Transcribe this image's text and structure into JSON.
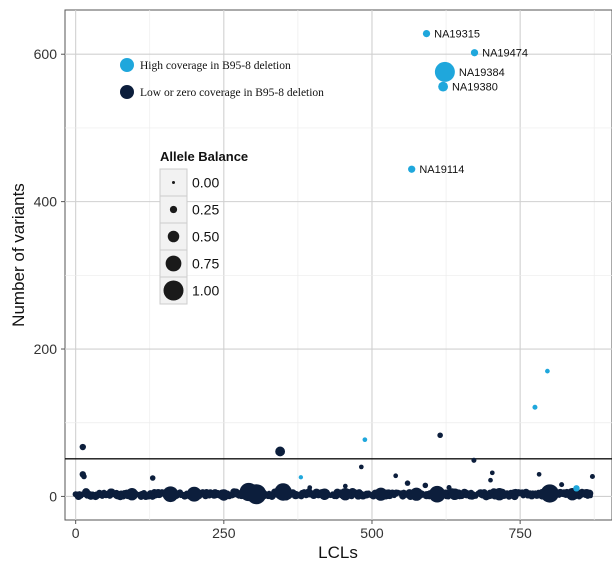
{
  "chart_data": {
    "type": "scatter",
    "title": "",
    "xlabel": "LCLs",
    "ylabel": "Number of variants",
    "xlim": [
      -18,
      905
    ],
    "ylim": [
      -32,
      660
    ],
    "x_ticks": [
      0,
      250,
      500,
      750
    ],
    "y_ticks": [
      0,
      200,
      400,
      600
    ],
    "x_tick_labels": [
      "0",
      "250",
      "500",
      "750"
    ],
    "y_tick_labels": [
      "0",
      "200",
      "400",
      "600"
    ],
    "grid": true,
    "threshold_line_y": 51,
    "colors": {
      "high": "#1FA7DC",
      "low": "#0C1E3C",
      "axis": "#555555",
      "grid": "#e0e0e0",
      "grid_major": "#d0d0d0",
      "legend_dot": "#1a1a1a"
    },
    "series": [
      {
        "name": "High coverage in B95-8 deletion",
        "color": "#1FA7DC",
        "points": [
          {
            "x": 592,
            "y": 628,
            "ab": 0.25,
            "label": "NA19315"
          },
          {
            "x": 673,
            "y": 602,
            "ab": 0.25,
            "label": "NA19474"
          },
          {
            "x": 623,
            "y": 576,
            "ab": 1.0,
            "label": "NA19384"
          },
          {
            "x": 620,
            "y": 556,
            "ab": 0.4,
            "label": "NA19380"
          },
          {
            "x": 567,
            "y": 444,
            "ab": 0.25,
            "label": "NA19114"
          },
          {
            "x": 796,
            "y": 170,
            "ab": 0.1,
            "label": ""
          },
          {
            "x": 775,
            "y": 121,
            "ab": 0.12,
            "label": ""
          },
          {
            "x": 488,
            "y": 77,
            "ab": 0.1,
            "label": ""
          },
          {
            "x": 380,
            "y": 26,
            "ab": 0.08,
            "label": ""
          },
          {
            "x": 845,
            "y": 11,
            "ab": 0.2,
            "label": ""
          }
        ]
      },
      {
        "name": "Low or zero coverage in B95-8 deletion",
        "color": "#0C1E3C",
        "points": [
          {
            "x": 12,
            "y": 67,
            "ab": 0.2
          },
          {
            "x": 345,
            "y": 61,
            "ab": 0.4
          },
          {
            "x": 615,
            "y": 83,
            "ab": 0.15
          },
          {
            "x": 672,
            "y": 49,
            "ab": 0.12
          },
          {
            "x": 482,
            "y": 40,
            "ab": 0.1
          },
          {
            "x": 12,
            "y": 30,
            "ab": 0.2
          },
          {
            "x": 14,
            "y": 27,
            "ab": 0.15
          },
          {
            "x": 130,
            "y": 25,
            "ab": 0.15
          },
          {
            "x": 540,
            "y": 28,
            "ab": 0.1
          },
          {
            "x": 703,
            "y": 32,
            "ab": 0.1
          },
          {
            "x": 782,
            "y": 30,
            "ab": 0.1
          },
          {
            "x": 872,
            "y": 27,
            "ab": 0.12
          },
          {
            "x": 590,
            "y": 15,
            "ab": 0.15
          },
          {
            "x": 560,
            "y": 18,
            "ab": 0.15
          },
          {
            "x": 700,
            "y": 22,
            "ab": 0.1
          },
          {
            "x": 820,
            "y": 16,
            "ab": 0.12
          },
          {
            "x": 455,
            "y": 14,
            "ab": 0.1
          },
          {
            "x": 395,
            "y": 12,
            "ab": 0.1
          },
          {
            "x": 630,
            "y": 12,
            "ab": 0.12
          },
          {
            "x": 95,
            "y": 3,
            "ab": 0.55
          },
          {
            "x": 160,
            "y": 3,
            "ab": 0.75
          },
          {
            "x": 200,
            "y": 3,
            "ab": 0.7
          },
          {
            "x": 250,
            "y": 2,
            "ab": 0.5
          },
          {
            "x": 292,
            "y": 6,
            "ab": 0.9
          },
          {
            "x": 305,
            "y": 3,
            "ab": 1.0
          },
          {
            "x": 350,
            "y": 6,
            "ab": 0.85
          },
          {
            "x": 420,
            "y": 3,
            "ab": 0.5
          },
          {
            "x": 455,
            "y": 3,
            "ab": 0.55
          },
          {
            "x": 515,
            "y": 3,
            "ab": 0.6
          },
          {
            "x": 575,
            "y": 3,
            "ab": 0.6
          },
          {
            "x": 610,
            "y": 3,
            "ab": 0.8
          },
          {
            "x": 640,
            "y": 3,
            "ab": 0.5
          },
          {
            "x": 715,
            "y": 3,
            "ab": 0.55
          },
          {
            "x": 788,
            "y": 3,
            "ab": 0.45
          },
          {
            "x": 800,
            "y": 4,
            "ab": 0.9
          },
          {
            "x": 838,
            "y": 3,
            "ab": 0.55
          }
        ]
      }
    ],
    "legend": {
      "position": "top-left",
      "items": [
        {
          "label": "High coverage in B95-8 deletion",
          "color": "#1FA7DC"
        },
        {
          "label": "Low or zero coverage in B95-8 deletion",
          "color": "#0C1E3C"
        }
      ]
    },
    "size_legend": {
      "title": "Allele Balance",
      "entries": [
        {
          "label": "0.00",
          "ab": 0.0
        },
        {
          "label": "0.25",
          "ab": 0.25
        },
        {
          "label": "0.50",
          "ab": 0.5
        },
        {
          "label": "0.75",
          "ab": 0.75
        },
        {
          "label": "1.00",
          "ab": 1.0
        }
      ]
    }
  }
}
